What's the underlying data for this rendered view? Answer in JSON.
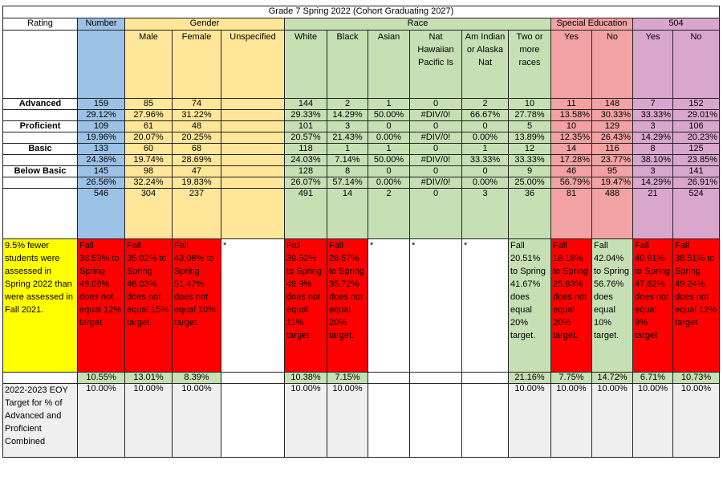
{
  "title": "Grade 7 Spring 2022 (Cohort Graduating 2027)",
  "headers": {
    "rating": "Rating",
    "number": "Number",
    "gender": "Gender",
    "race": "Race",
    "sped": "Special Education",
    "s504": "504"
  },
  "subheaders": [
    "Male",
    "Female",
    "Unspecified",
    "White",
    "Black",
    "Asian",
    "Nat Hawaiian Pacific Is",
    "Am Indian or Alaska Nat",
    "Two or more races",
    "Yes",
    "No",
    "Yes",
    "No"
  ],
  "rows": [
    {
      "label": "Advanced",
      "counts": [
        "159",
        "85",
        "74",
        "",
        "144",
        "2",
        "1",
        "0",
        "2",
        "10",
        "11",
        "148",
        "7",
        "152"
      ],
      "pcts": [
        "29.12%",
        "27.96%",
        "31.22%",
        "",
        "29.33%",
        "14.29%",
        "50.00%",
        "#DIV/0!",
        "66.67%",
        "27.78%",
        "13.58%",
        "30.33%",
        "33.33%",
        "29.01%"
      ]
    },
    {
      "label": "Proficient",
      "counts": [
        "109",
        "61",
        "48",
        "",
        "101",
        "3",
        "0",
        "0",
        "0",
        "5",
        "10",
        "129",
        "3",
        "106"
      ],
      "pcts": [
        "19.96%",
        "20.07%",
        "20.25%",
        "",
        "20.57%",
        "21.43%",
        "0.00%",
        "#DIV/0!",
        "0.00%",
        "13.89%",
        "12.35%",
        "26.43%",
        "14.29%",
        "20.23%"
      ]
    },
    {
      "label": "Basic",
      "counts": [
        "133",
        "60",
        "68",
        "",
        "118",
        "1",
        "1",
        "0",
        "1",
        "12",
        "14",
        "116",
        "8",
        "125"
      ],
      "pcts": [
        "24.36%",
        "19.74%",
        "28.69%",
        "",
        "24.03%",
        "7.14%",
        "50.00%",
        "#DIV/0!",
        "33.33%",
        "33.33%",
        "17.28%",
        "23.77%",
        "38.10%",
        "23.85%"
      ]
    },
    {
      "label": "Below Basic",
      "counts": [
        "145",
        "98",
        "47",
        "",
        "128",
        "8",
        "0",
        "0",
        "0",
        "9",
        "46",
        "95",
        "3",
        "141"
      ],
      "pcts": [
        "26.56%",
        "32.24%",
        "19.83%",
        "",
        "26.07%",
        "57.14%",
        "0.00%",
        "#DIV/0!",
        "0.00%",
        "25.00%",
        "56.79%",
        "19.47%",
        "14.29%",
        "26.91%"
      ]
    }
  ],
  "totals": [
    "546",
    "304",
    "237",
    "",
    "491",
    "14",
    "2",
    "0",
    "3",
    "36",
    "81",
    "488",
    "21",
    "524"
  ],
  "note_label": "9.5% fewer students were assessed in Spring 2022 than were assessed in Fall 2021.",
  "notes": [
    "Fall 38.53% to Spring 49.08% does not equal 12% target",
    "Fall 35.02% to Spring 48.03% does not equal 15% target.",
    "Fall 43.08% to Spring 51.47% does not equal 10% target.",
    "*",
    "Fall 39.52% to Spring 49.9% does not equal 11% target",
    "Fall 28.57% to Spring 35.72% does not equal 20% target.",
    "*",
    "*",
    "*",
    "Fall 20.51% to Spring 41.67% does equal 20% target.",
    "Fall 18.18% to Spring 25.93% does not equal 20% target.",
    "Fall 42.04% to Spring 56.76% does equal 10% target.",
    "Fall 40.91% to Spring 47.62% does not equal 9% target",
    "Fall 38.51% to Spring 49.24% does not equal 12% target"
  ],
  "growth": [
    "10.55%",
    "13.01%",
    "8.39%",
    "",
    "10.38%",
    "7.15%",
    "",
    "",
    "",
    "21.16%",
    "7.75%",
    "14.72%",
    "6.71%",
    "10.73%"
  ],
  "target_label": "2022-2023 EOY Target for % of Advanced and Proficient Combined",
  "targets": [
    "10.00%",
    "10.00%",
    "10.00%",
    "",
    "10.00%",
    "10.00%",
    "",
    "",
    "",
    "10.00%",
    "10.00%",
    "10.00%",
    "10.00%",
    "10.00%"
  ]
}
